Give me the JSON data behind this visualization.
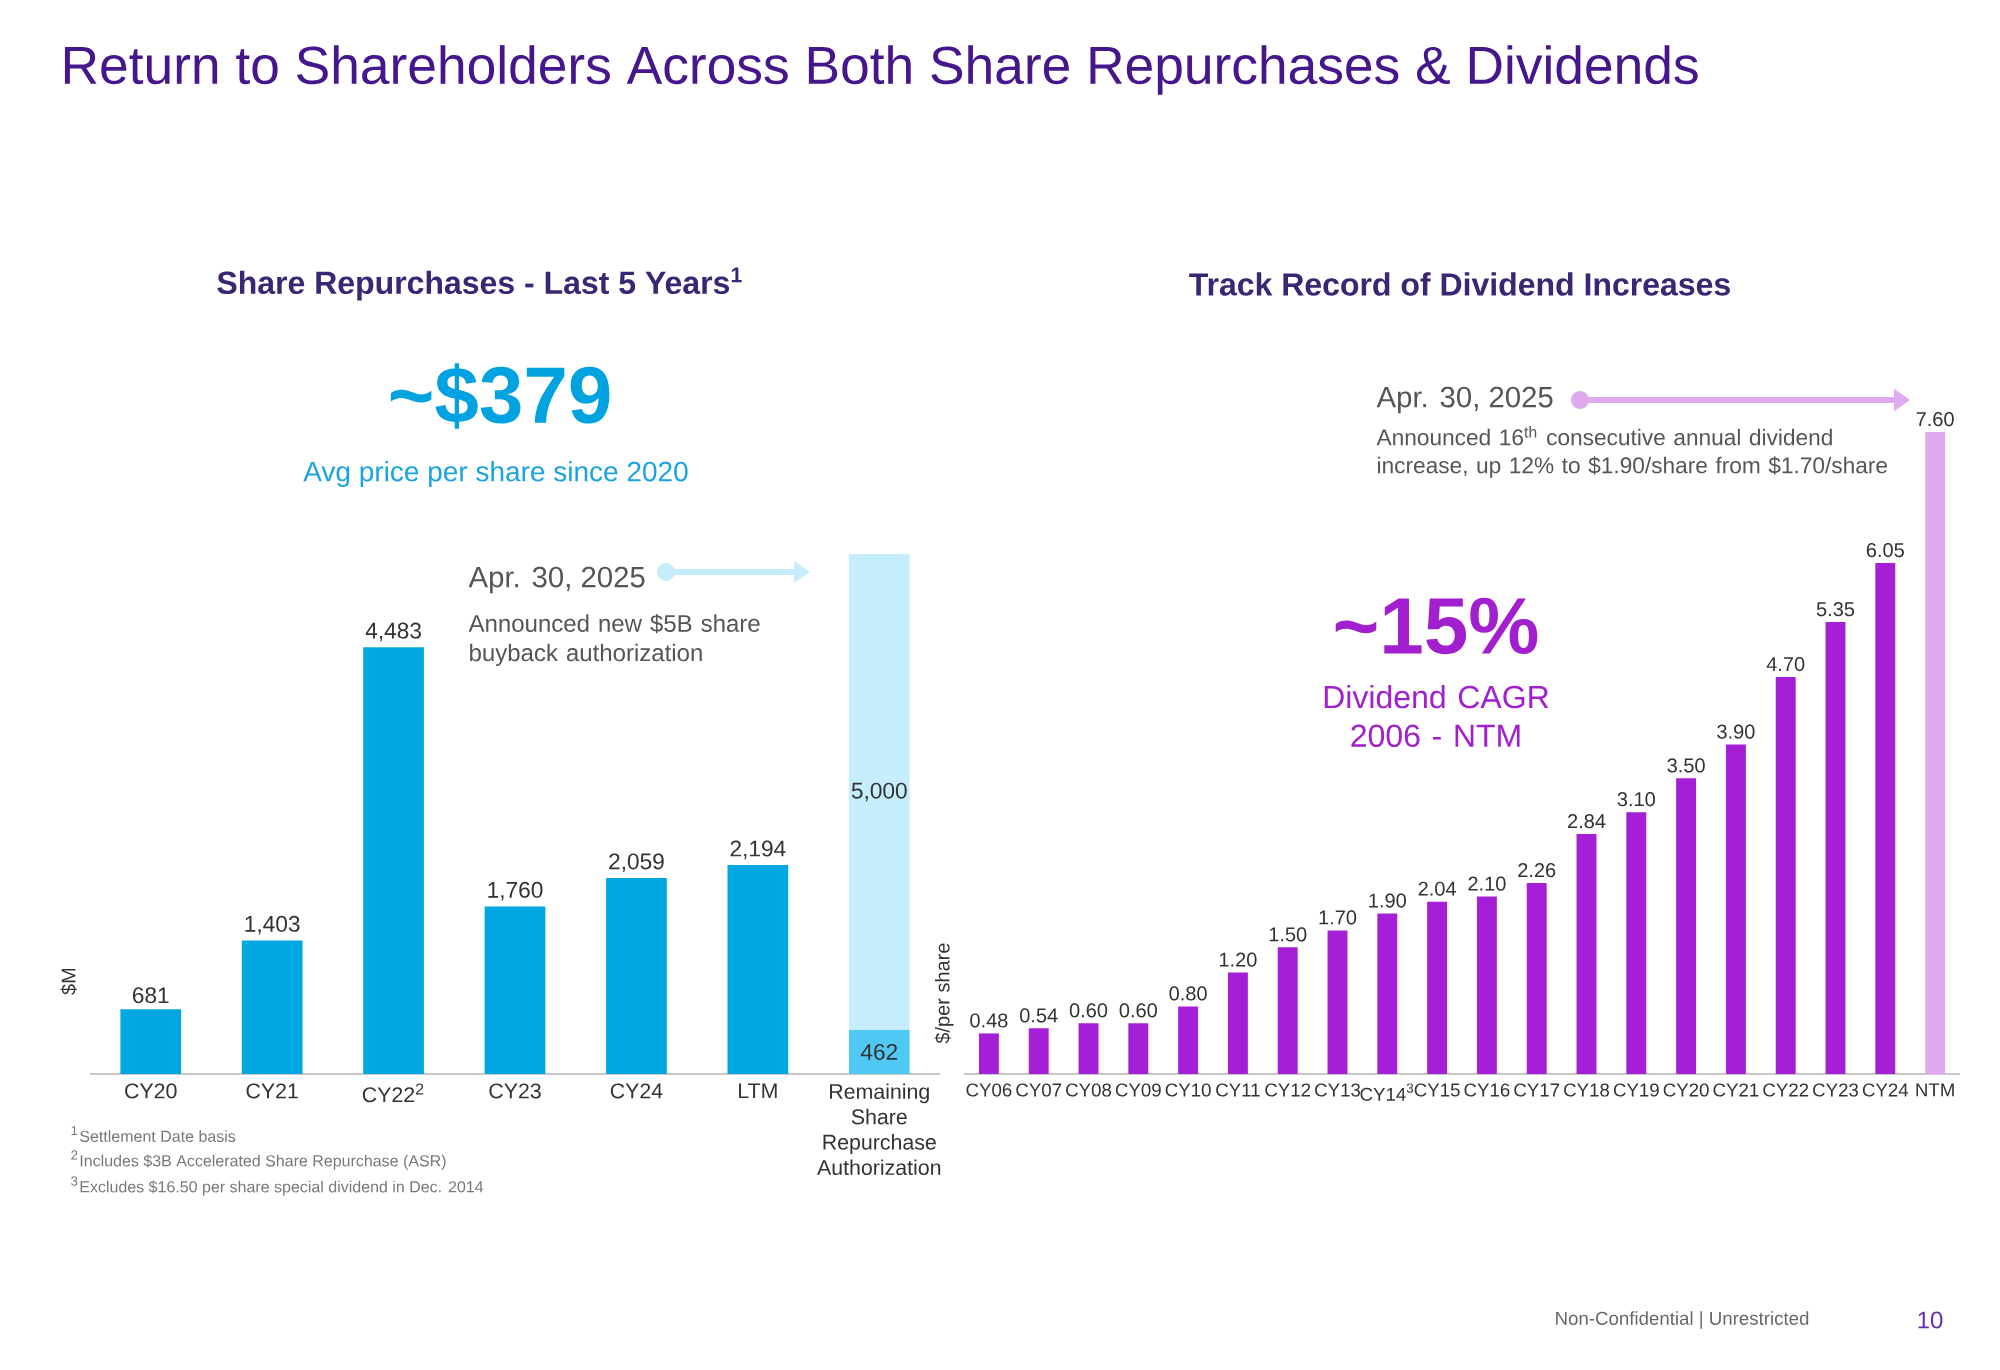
{
  "chart_data": [
    {
      "type": "bar",
      "title": "Return to Shareholders Across Both Share Repurchases & Dividends",
      "subtitle": "Share Repurchases - Last 5 Years$^{1}$",
      "ylabel": "$M",
      "categories": [
        "CY20",
        "CY21",
        "CY22$^{2}$",
        "CY23",
        "CY24",
        "LTM",
        "Remaining Share Repurchase Authorization"
      ],
      "stacked": true,
      "tick_labels": "x",
      "series": [
        {
          "colors": [
            "#00a7e1",
            "#00a7e1",
            "#00a7e1",
            "#00a7e1",
            "#00a7e1",
            "#00a7e1",
            "#4fc8f4"
          ],
          "values": [
            681,
            1403,
            4483,
            1760,
            2059,
            2194,
            462
          ],
          "value_labels": [
            "681",
            "1,403",
            "4,483",
            "1,760",
            "2,059",
            "2,194",
            "462"
          ]
        },
        {
          "color": "#c6edfb",
          "values": [
            null,
            null,
            null,
            null,
            null,
            null,
            5000
          ],
          "value_labels": [
            null,
            null,
            null,
            null,
            null,
            null,
            "5,000"
          ]
        }
      ],
      "annotations": [
        "~$379",
        "Avg price per share since 2020",
        "Apr. 30, 2025",
        "Announced new $5B share buyback authorization",
        "$^{1}$Settlement Date basis",
        "$^{2}$Includes $3B Accelerated Share Repurchase (ASR)",
        "$^{3}$Excludes $16.50 per share special dividend in Dec. 2014"
      ]
    },
    {
      "type": "bar",
      "title": "Track Record of Dividend Increases",
      "ylabel": "$/per share",
      "categories": [
        "CY06",
        "CY07",
        "CY08",
        "CY09",
        "CY10",
        "CY11",
        "CY12",
        "CY13",
        "CY14$^{3}$",
        "CY15",
        "CY16",
        "CY17",
        "CY18",
        "CY19",
        "CY20",
        "CY21",
        "CY22",
        "CY23",
        "CY24",
        "NTM"
      ],
      "tick_labels": "x",
      "series": [
        {
          "colors": [
            "#a51fd6",
            "#a51fd6",
            "#a51fd6",
            "#a51fd6",
            "#a51fd6",
            "#a51fd6",
            "#a51fd6",
            "#a51fd6",
            "#a51fd6",
            "#a51fd6",
            "#a51fd6",
            "#a51fd6",
            "#a51fd6",
            "#a51fd6",
            "#a51fd6",
            "#a51fd6",
            "#a51fd6",
            "#a51fd6",
            "#a51fd6",
            "#e0aaf0"
          ],
          "values": [
            0.48,
            0.54,
            0.6,
            0.6,
            0.8,
            1.2,
            1.5,
            1.7,
            1.9,
            2.04,
            2.1,
            2.26,
            2.84,
            3.1,
            3.5,
            3.9,
            4.7,
            5.35,
            6.05,
            7.6
          ],
          "value_labels": [
            "0.48",
            "0.54",
            "0.60",
            "0.60",
            "0.80",
            "1.20",
            "1.50",
            "1.70",
            "1.90",
            "2.04",
            "2.10",
            "2.26",
            "2.84",
            "3.10",
            "3.50",
            "3.90",
            "4.70",
            "5.35",
            "6.05",
            "7.60"
          ]
        }
      ],
      "annotations": [
        "Apr. 30, 2025",
        "Announced 16$^{th}$ consecutive annual dividend increase, up 12% to $1.90/share from $1.70/share",
        "~15%",
        "Dividend CAGR 2006 - NTM",
        "Non-Confidential | Unrestricted",
        "10"
      ]
    }
  ]
}
